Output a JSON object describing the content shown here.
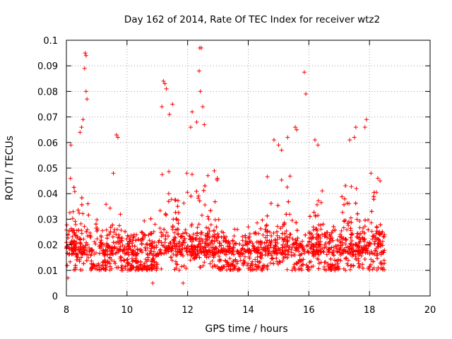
{
  "chart_data": {
    "type": "scatter",
    "title": "Day 162 of 2014, Rate Of TEC Index for receiver wtz2",
    "xlabel": "GPS time / hours",
    "ylabel": "ROTI / TECUs",
    "xlim": [
      8,
      20
    ],
    "ylim": [
      0,
      0.1
    ],
    "x_ticks": [
      "8",
      "10",
      "12",
      "14",
      "16",
      "18",
      "20"
    ],
    "y_ticks": [
      "0",
      "0.01",
      "0.02",
      "0.03",
      "0.04",
      "0.05",
      "0.06",
      "0.07",
      "0.08",
      "0.09",
      "0.1"
    ],
    "grid": true,
    "marker": "+",
    "color": "#ff0000",
    "data_x_range": [
      8.0,
      18.5
    ],
    "series": [
      {
        "name": "wtz2",
        "notable_points": [
          {
            "x": 8.62,
            "y": 0.095
          },
          {
            "x": 8.65,
            "y": 0.094
          },
          {
            "x": 8.6,
            "y": 0.089
          },
          {
            "x": 8.65,
            "y": 0.08
          },
          {
            "x": 8.68,
            "y": 0.077
          },
          {
            "x": 8.55,
            "y": 0.069
          },
          {
            "x": 8.5,
            "y": 0.066
          },
          {
            "x": 8.45,
            "y": 0.064
          },
          {
            "x": 8.15,
            "y": 0.059
          },
          {
            "x": 9.65,
            "y": 0.063
          },
          {
            "x": 9.7,
            "y": 0.062
          },
          {
            "x": 9.55,
            "y": 0.048
          },
          {
            "x": 11.2,
            "y": 0.084
          },
          {
            "x": 11.25,
            "y": 0.083
          },
          {
            "x": 11.3,
            "y": 0.081
          },
          {
            "x": 11.15,
            "y": 0.074
          },
          {
            "x": 11.5,
            "y": 0.075
          },
          {
            "x": 11.4,
            "y": 0.071
          },
          {
            "x": 12.4,
            "y": 0.097
          },
          {
            "x": 12.45,
            "y": 0.097
          },
          {
            "x": 12.38,
            "y": 0.088
          },
          {
            "x": 12.42,
            "y": 0.08
          },
          {
            "x": 12.15,
            "y": 0.072
          },
          {
            "x": 12.5,
            "y": 0.074
          },
          {
            "x": 12.1,
            "y": 0.066
          },
          {
            "x": 12.3,
            "y": 0.068
          },
          {
            "x": 12.55,
            "y": 0.067
          },
          {
            "x": 14.85,
            "y": 0.061
          },
          {
            "x": 15.0,
            "y": 0.059
          },
          {
            "x": 15.1,
            "y": 0.057
          },
          {
            "x": 15.3,
            "y": 0.062
          },
          {
            "x": 15.55,
            "y": 0.066
          },
          {
            "x": 15.6,
            "y": 0.065
          },
          {
            "x": 15.85,
            "y": 0.0875
          },
          {
            "x": 15.9,
            "y": 0.079
          },
          {
            "x": 16.2,
            "y": 0.061
          },
          {
            "x": 16.3,
            "y": 0.059
          },
          {
            "x": 17.35,
            "y": 0.061
          },
          {
            "x": 17.5,
            "y": 0.062
          },
          {
            "x": 17.55,
            "y": 0.066
          },
          {
            "x": 17.9,
            "y": 0.069
          },
          {
            "x": 17.85,
            "y": 0.066
          },
          {
            "x": 18.05,
            "y": 0.048
          },
          {
            "x": 18.35,
            "y": 0.045
          },
          {
            "x": 10.85,
            "y": 0.005
          },
          {
            "x": 11.85,
            "y": 0.005
          },
          {
            "x": 8.05,
            "y": 0.007
          },
          {
            "x": 18.45,
            "y": 0.011
          }
        ]
      }
    ]
  }
}
